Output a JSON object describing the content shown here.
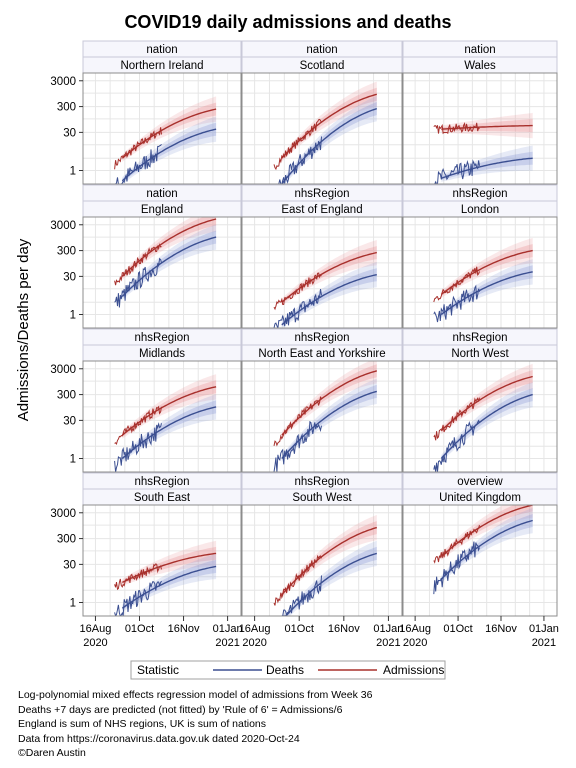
{
  "chart_data": {
    "type": "line",
    "title": "COVID19 daily admissions and deaths",
    "ylabel": "Admissions/Deaths per day",
    "xlabel": "",
    "y_scale": "log",
    "y_ticks": [
      1,
      30,
      300,
      3000
    ],
    "x_ticks": [
      {
        "date": "2020-08-16",
        "line1": "16Aug",
        "line2": "2020"
      },
      {
        "date": "2020-10-01",
        "line1": "01Oct",
        "line2": ""
      },
      {
        "date": "2020-11-16",
        "line1": "16Nov",
        "line2": ""
      },
      {
        "date": "2021-01-01",
        "line1": "01Jan",
        "line2": "2021"
      }
    ],
    "grid": true,
    "legend": {
      "placement": "bottom",
      "title": "Statistic",
      "entries": [
        {
          "name": "Deaths",
          "color": "#3b4f91"
        },
        {
          "name": "Admissions",
          "color": "#a8302c"
        }
      ]
    },
    "colors": {
      "deaths": "#3b4f91",
      "admissions": "#a8302c",
      "deaths_band": "#8e9fd8",
      "admissions_band": "#e8959a"
    },
    "panels": [
      {
        "group": "nation",
        "name": "Northern Ireland",
        "admissions": {
          "start": "2020-09-05",
          "end": "2020-12-20",
          "y0": 3,
          "y1": 240
        },
        "deaths": {
          "start": "2020-09-05",
          "end": "2020-12-20",
          "y0": 0.4,
          "y1": 40
        }
      },
      {
        "group": "nation",
        "name": "Scotland",
        "admissions": {
          "start": "2020-09-05",
          "end": "2020-12-20",
          "y0": 3,
          "y1": 900
        },
        "deaths": {
          "start": "2020-09-05",
          "end": "2020-12-20",
          "y0": 0.3,
          "y1": 250
        }
      },
      {
        "group": "nation",
        "name": "Wales",
        "admissions": {
          "start": "2020-09-05",
          "end": "2020-12-20",
          "y0": 40,
          "y1": 55
        },
        "deaths": {
          "start": "2020-09-05",
          "end": "2020-12-20",
          "y0": 0.5,
          "y1": 3
        }
      },
      {
        "group": "nation",
        "name": "England",
        "admissions": {
          "start": "2020-09-05",
          "end": "2020-12-20",
          "y0": 30,
          "y1": 5000
        },
        "deaths": {
          "start": "2020-09-05",
          "end": "2020-12-20",
          "y0": 5,
          "y1": 1000
        }
      },
      {
        "group": "nhsRegion",
        "name": "East of England",
        "admissions": {
          "start": "2020-09-05",
          "end": "2020-12-20",
          "y0": 3,
          "y1": 250
        },
        "deaths": {
          "start": "2020-09-05",
          "end": "2020-12-20",
          "y0": 0.4,
          "y1": 35
        }
      },
      {
        "group": "nhsRegion",
        "name": "London",
        "admissions": {
          "start": "2020-09-05",
          "end": "2020-12-20",
          "y0": 6,
          "y1": 300
        },
        "deaths": {
          "start": "2020-09-05",
          "end": "2020-12-20",
          "y0": 1,
          "y1": 45
        }
      },
      {
        "group": "nhsRegion",
        "name": "Midlands",
        "admissions": {
          "start": "2020-09-05",
          "end": "2020-12-20",
          "y0": 8,
          "y1": 600
        },
        "deaths": {
          "start": "2020-09-05",
          "end": "2020-12-20",
          "y0": 1,
          "y1": 100
        }
      },
      {
        "group": "nhsRegion",
        "name": "North East and Yorkshire",
        "admissions": {
          "start": "2020-09-05",
          "end": "2020-12-20",
          "y0": 8,
          "y1": 2500
        },
        "deaths": {
          "start": "2020-09-05",
          "end": "2020-12-20",
          "y0": 1,
          "y1": 400
        }
      },
      {
        "group": "nhsRegion",
        "name": "North West",
        "admissions": {
          "start": "2020-09-05",
          "end": "2020-12-20",
          "y0": 12,
          "y1": 1500
        },
        "deaths": {
          "start": "2020-09-05",
          "end": "2020-12-20",
          "y0": 1,
          "y1": 300
        }
      },
      {
        "group": "nhsRegion",
        "name": "South East",
        "admissions": {
          "start": "2020-09-05",
          "end": "2020-12-20",
          "y0": 6,
          "y1": 80
        },
        "deaths": {
          "start": "2020-09-05",
          "end": "2020-12-20",
          "y0": 0.6,
          "y1": 25
        }
      },
      {
        "group": "nhsRegion",
        "name": "South West",
        "admissions": {
          "start": "2020-09-05",
          "end": "2020-12-20",
          "y0": 2,
          "y1": 800
        },
        "deaths": {
          "start": "2020-09-05",
          "end": "2020-12-20",
          "y0": 0.2,
          "y1": 80
        }
      },
      {
        "group": "overview",
        "name": "United Kingdom",
        "admissions": {
          "start": "2020-09-05",
          "end": "2020-12-20",
          "y0": 60,
          "y1": 6000
        },
        "deaths": {
          "start": "2020-09-05",
          "end": "2020-12-20",
          "y0": 8,
          "y1": 1500
        }
      }
    ]
  },
  "notes": [
    "Log-polynomial mixed effects regression model of admissions from Week 36",
    "Deaths +7 days are predicted (not fitted) by 'Rule of 6' = Admissions/6",
    "England is sum of NHS regions, UK is sum of nations",
    "Data from https://coronavirus.data.gov.uk dated 2020-Oct-24",
    "©Daren Austin"
  ]
}
